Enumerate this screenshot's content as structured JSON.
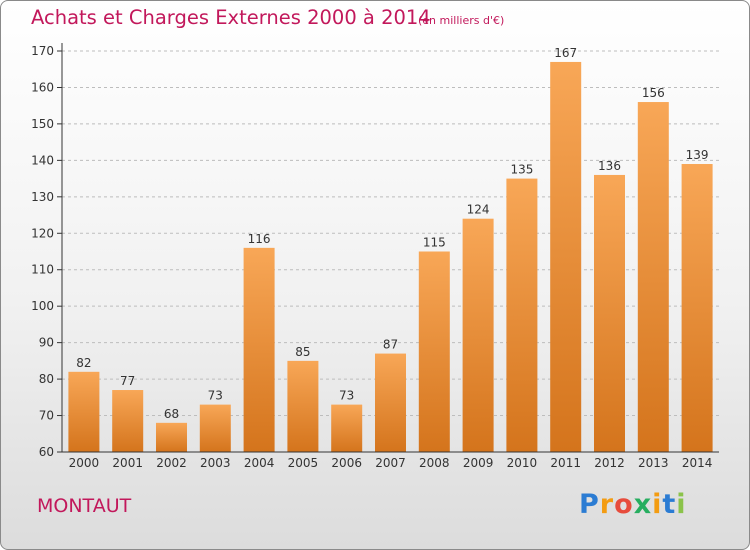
{
  "header": {
    "title": "Achats et Charges Externes 2000 à 2014",
    "subtitle": "(en milliers d'€)"
  },
  "commune": "MONTAUT",
  "logo": {
    "text": "Proxiti",
    "letters": [
      {
        "ch": "P",
        "color": "#2b7cd3"
      },
      {
        "ch": "r",
        "color": "#f39c12"
      },
      {
        "ch": "o",
        "color": "#e74c3c"
      },
      {
        "ch": "x",
        "color": "#27ae60"
      },
      {
        "ch": "i",
        "color": "#f39c12"
      },
      {
        "ch": "t",
        "color": "#2b7cd3"
      },
      {
        "ch": "i",
        "color": "#8bc34a"
      }
    ]
  },
  "colors": {
    "title": "#c2185b",
    "bar_top": "#f8a757",
    "bar_bottom": "#d4741c",
    "axis": "#333333",
    "grid": "#bdbdbd"
  },
  "chart_data": {
    "type": "bar",
    "title": "Achats et Charges Externes 2000 à 2014",
    "subtitle": "(en milliers d'€)",
    "xlabel": "",
    "ylabel": "",
    "categories": [
      "2000",
      "2001",
      "2002",
      "2003",
      "2004",
      "2005",
      "2006",
      "2007",
      "2008",
      "2009",
      "2010",
      "2011",
      "2012",
      "2013",
      "2014"
    ],
    "values": [
      82,
      77,
      68,
      73,
      116,
      85,
      73,
      87,
      115,
      124,
      135,
      167,
      136,
      156,
      139
    ],
    "ylim": [
      60,
      170
    ],
    "yticks": [
      60,
      70,
      80,
      90,
      100,
      110,
      120,
      130,
      140,
      150,
      160,
      170
    ],
    "grid": true,
    "data_labels": true
  }
}
